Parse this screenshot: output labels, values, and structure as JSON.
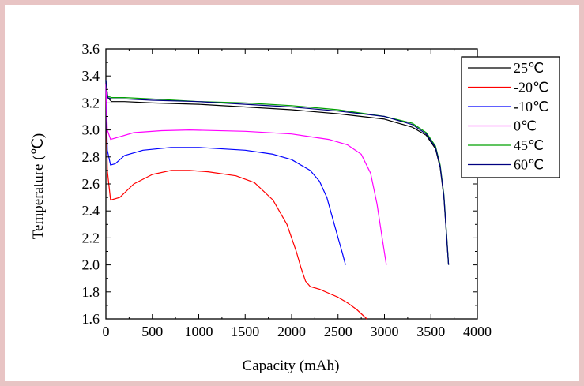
{
  "chart_data": {
    "type": "line",
    "xlabel": "Capacity (mAh)",
    "ylabel": "Temperature (℃)",
    "xlim": [
      0,
      4000
    ],
    "ylim": [
      1.6,
      3.6
    ],
    "xticks": [
      0,
      500,
      1000,
      1500,
      2000,
      2500,
      3000,
      3500,
      4000
    ],
    "yticks": [
      "1.6",
      "1.8",
      "2.0",
      "2.2",
      "2.4",
      "2.6",
      "2.8",
      "3.0",
      "3.2",
      "3.4",
      "3.6"
    ],
    "grid": false,
    "legend_position": "top-right",
    "series": [
      {
        "name": "25℃",
        "color": "#000000",
        "x": [
          0,
          20,
          60,
          200,
          500,
          1000,
          1500,
          2000,
          2500,
          3000,
          3300,
          3450,
          3550,
          3600,
          3640,
          3670,
          3690
        ],
        "y": [
          3.36,
          3.24,
          3.21,
          3.21,
          3.2,
          3.19,
          3.17,
          3.15,
          3.12,
          3.08,
          3.02,
          2.96,
          2.86,
          2.72,
          2.5,
          2.2,
          2.0
        ]
      },
      {
        "name": "-20℃",
        "color": "#ff0000",
        "x": [
          0,
          15,
          50,
          150,
          300,
          500,
          700,
          900,
          1100,
          1400,
          1600,
          1800,
          1950,
          2050,
          2100,
          2150,
          2200,
          2300,
          2400,
          2500,
          2600,
          2700,
          2810
        ],
        "y": [
          3.35,
          2.7,
          2.48,
          2.5,
          2.6,
          2.67,
          2.7,
          2.7,
          2.69,
          2.66,
          2.61,
          2.48,
          2.3,
          2.1,
          1.98,
          1.88,
          1.84,
          1.82,
          1.79,
          1.76,
          1.72,
          1.67,
          1.6
        ]
      },
      {
        "name": "-10℃",
        "color": "#0000ff",
        "x": [
          0,
          15,
          50,
          100,
          200,
          400,
          700,
          1000,
          1500,
          1800,
          2000,
          2200,
          2300,
          2380,
          2440,
          2500,
          2550,
          2580
        ],
        "y": [
          3.35,
          2.85,
          2.74,
          2.75,
          2.81,
          2.85,
          2.87,
          2.87,
          2.85,
          2.82,
          2.78,
          2.7,
          2.62,
          2.5,
          2.35,
          2.2,
          2.08,
          2.0
        ]
      },
      {
        "name": "0℃",
        "color": "#ff00ff",
        "x": [
          0,
          15,
          50,
          100,
          300,
          600,
          900,
          1500,
          2000,
          2400,
          2600,
          2750,
          2850,
          2920,
          2980,
          3020
        ],
        "y": [
          3.35,
          3.0,
          2.93,
          2.94,
          2.98,
          2.995,
          3.0,
          2.99,
          2.97,
          2.93,
          2.89,
          2.82,
          2.68,
          2.45,
          2.18,
          2.0
        ]
      },
      {
        "name": "45℃",
        "color": "#00a000",
        "x": [
          0,
          20,
          60,
          200,
          500,
          1000,
          1500,
          2000,
          2500,
          3000,
          3300,
          3450,
          3550,
          3600,
          3640,
          3670,
          3690
        ],
        "y": [
          3.36,
          3.25,
          3.24,
          3.24,
          3.23,
          3.21,
          3.2,
          3.18,
          3.15,
          3.1,
          3.05,
          2.98,
          2.88,
          2.74,
          2.52,
          2.22,
          2.0
        ]
      },
      {
        "name": "60℃",
        "color": "#000080",
        "x": [
          0,
          20,
          60,
          200,
          500,
          1000,
          1500,
          2000,
          2500,
          3000,
          3300,
          3450,
          3550,
          3600,
          3640,
          3670,
          3690
        ],
        "y": [
          3.37,
          3.24,
          3.23,
          3.23,
          3.22,
          3.21,
          3.19,
          3.17,
          3.14,
          3.1,
          3.04,
          2.97,
          2.87,
          2.73,
          2.51,
          2.21,
          2.0
        ]
      }
    ]
  }
}
